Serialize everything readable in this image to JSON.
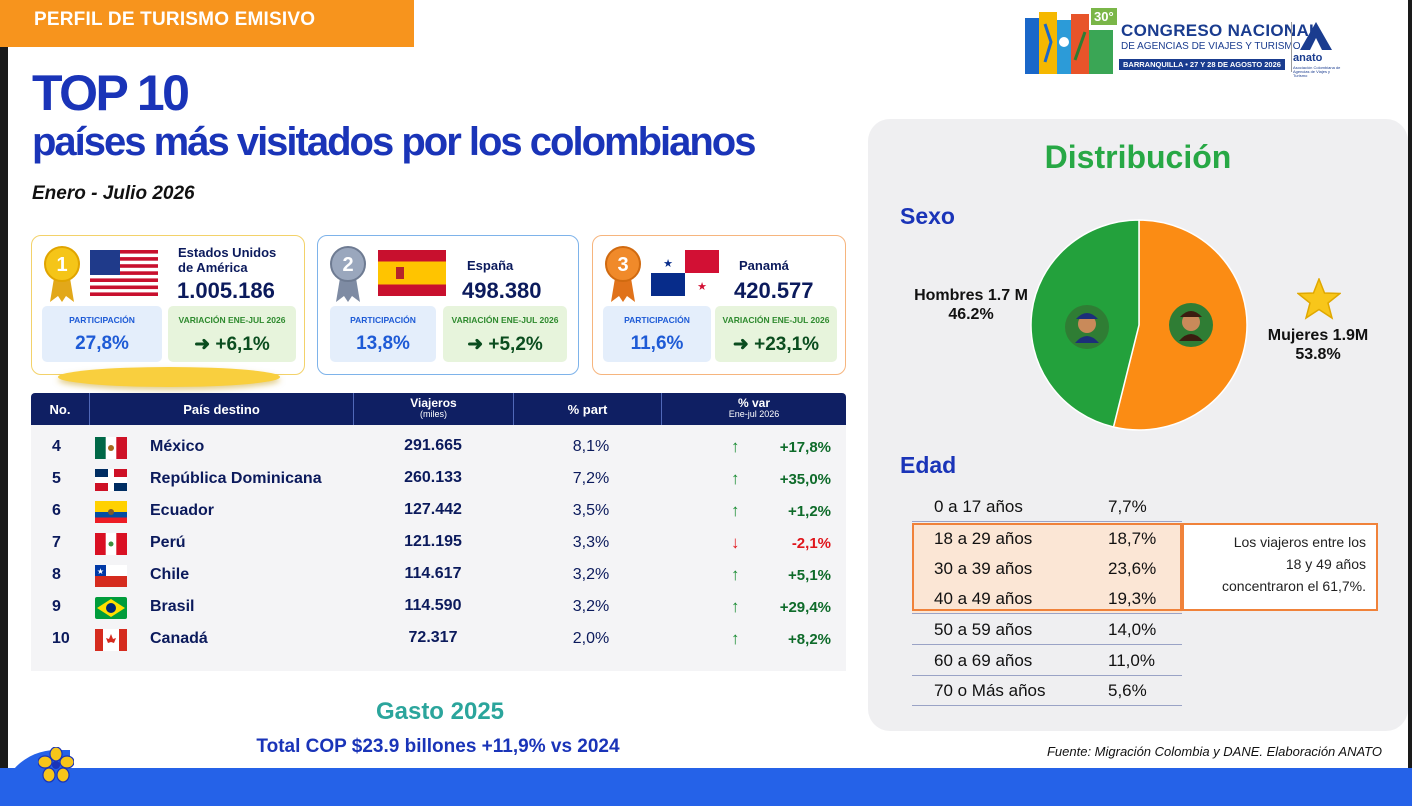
{
  "header": {
    "banner": "PERFIL DE TURISMO EMISIVO",
    "title_line1": "TOP 10",
    "title_line2": "países más visitados por los colombianos",
    "period": "Enero - Julio 2026"
  },
  "logo": {
    "anniversary": "30°",
    "line1": "CONGRESO NACIONAL",
    "line2": "DE AGENCIAS DE VIAJES Y TURISMO",
    "line3": "BARRANQUILLA • 27 Y 28 DE AGOSTO 2026",
    "org": "anato",
    "org_sub": "Asociación Colombiana de Agencias de Viajes y Turismo"
  },
  "top3": [
    {
      "rank": "1",
      "country": "Estados Unidos de América",
      "value": "1.005.186",
      "part_label": "PARTICIPACIÓN",
      "part": "27,8%",
      "var_label": "VARIACIÓN ENE-JUL 2026",
      "var": "+6,1%"
    },
    {
      "rank": "2",
      "country": "España",
      "value": "498.380",
      "part_label": "PARTICIPACIÓN",
      "part": "13,8%",
      "var_label": "VARIACIÓN ENE-JUL 2026",
      "var": "+5,2%"
    },
    {
      "rank": "3",
      "country": "Panamá",
      "value": "420.577",
      "part_label": "PARTICIPACIÓN",
      "part": "11,6%",
      "var_label": "VARIACIÓN ENE-JUL 2026",
      "var": "+23,1%"
    }
  ],
  "table": {
    "headers": {
      "no": "No.",
      "pais": "País destino",
      "viajeros": "Viajeros",
      "viajeros_sub": "(miles)",
      "part": "% part",
      "var": "% var",
      "var_sub": "Ene-jul 2026"
    },
    "rows": [
      {
        "no": "4",
        "country": "México",
        "viajeros": "291.665",
        "part": "8,1%",
        "var": "+17,8%",
        "dir": "up"
      },
      {
        "no": "5",
        "country": "República Dominicana",
        "viajeros": "260.133",
        "part": "7,2%",
        "var": "+35,0%",
        "dir": "up"
      },
      {
        "no": "6",
        "country": "Ecuador",
        "viajeros": "127.442",
        "part": "3,5%",
        "var": "+1,2%",
        "dir": "up"
      },
      {
        "no": "7",
        "country": "Perú",
        "viajeros": "121.195",
        "part": "3,3%",
        "var": "-2,1%",
        "dir": "down"
      },
      {
        "no": "8",
        "country": "Chile",
        "viajeros": "114.617",
        "part": "3,2%",
        "var": "+5,1%",
        "dir": "up"
      },
      {
        "no": "9",
        "country": "Brasil",
        "viajeros": "114.590",
        "part": "3,2%",
        "var": "+29,4%",
        "dir": "up"
      },
      {
        "no": "10",
        "country": "Canadá",
        "viajeros": "72.317",
        "part": "2,0%",
        "var": "+8,2%",
        "dir": "up"
      }
    ]
  },
  "gasto": {
    "title": "Gasto 2025",
    "text": "Total COP $23.9 billones +11,9% vs 2024"
  },
  "distribution": {
    "title": "Distribución",
    "sexo_label": "Sexo",
    "hombres": "Hombres 1.7 M",
    "hombres_pct": "46.2%",
    "mujeres": "Mujeres 1.9M",
    "mujeres_pct": "53.8%",
    "chart_data": {
      "type": "pie",
      "categories": [
        "Hombres",
        "Mujeres"
      ],
      "values": [
        46.2,
        53.8
      ],
      "colors": [
        "#23a13c",
        "#fb8c14"
      ]
    },
    "edad_label": "Edad",
    "ages": [
      {
        "range": "0 a 17  años",
        "pct": "7,7%",
        "highlight": false
      },
      {
        "range": "18 a 29  años",
        "pct": "18,7%",
        "highlight": true
      },
      {
        "range": "30 a 39  años",
        "pct": "23,6%",
        "highlight": true
      },
      {
        "range": "40 a 49  años",
        "pct": "19,3%",
        "highlight": true
      },
      {
        "range": "50 a 59  años",
        "pct": "14,0%",
        "highlight": false
      },
      {
        "range": "60 a 69  años",
        "pct": "11,0%",
        "highlight": false
      },
      {
        "range": "70 o Más  años",
        "pct": "5,6%",
        "highlight": false
      }
    ],
    "note_line1": "Los viajeros entre los",
    "note_line2": "18 y 49 años",
    "note_line3": "concentraron el 61,7%."
  },
  "source": "Fuente: Migración Colombia y DANE. Elaboración ANATO",
  "colors": {
    "brand_blue": "#1a34b8",
    "navy": "#0f1f63",
    "orange": "#f7941d",
    "green": "#27a845"
  }
}
